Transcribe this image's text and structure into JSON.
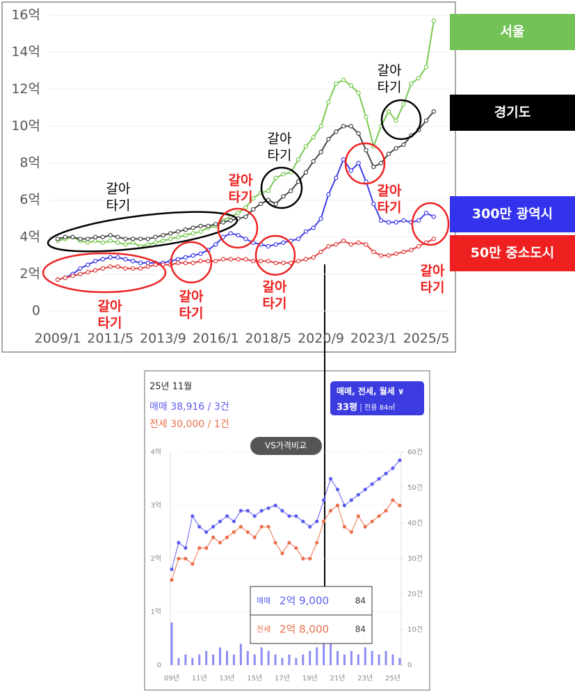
{
  "chart_data": [
    {
      "type": "line",
      "categories": [
        "2009/1",
        null,
        null,
        null,
        null,
        null,
        null,
        "2011/5",
        null,
        null,
        null,
        null,
        null,
        null,
        "2013/9",
        null,
        null,
        null,
        null,
        null,
        null,
        "2016/1",
        null,
        null,
        null,
        null,
        null,
        null,
        "2018/5",
        null,
        null,
        null,
        null,
        null,
        null,
        "2020/9",
        null,
        null,
        null,
        null,
        null,
        null,
        "2023/1",
        null,
        null,
        null,
        null,
        null,
        null,
        "2025/5",
        null
      ],
      "series": [
        {
          "name": "서울",
          "color": "#76c94f",
          "values": [
            3.8,
            3.9,
            4.0,
            3.8,
            3.7,
            3.8,
            3.7,
            3.8,
            3.7,
            3.6,
            3.7,
            3.5,
            3.6,
            3.7,
            3.8,
            3.9,
            4.0,
            4.1,
            4.2,
            4.3,
            4.5,
            4.6,
            4.9,
            5.1,
            5.3,
            5.6,
            6.1,
            6.4,
            6.5,
            7.2,
            7.4,
            7.5,
            8.2,
            8.9,
            9.4,
            10.0,
            11.3,
            12.3,
            12.5,
            12.2,
            11.8,
            10.5,
            8.9,
            10.0,
            10.8,
            10.3,
            11.2,
            12.3,
            12.6,
            13.2,
            15.7
          ]
        },
        {
          "name": "경기도",
          "color": "#444444",
          "values": [
            3.9,
            4.0,
            4.0,
            3.9,
            3.9,
            4.0,
            4.0,
            4.1,
            4.0,
            3.9,
            3.9,
            3.9,
            3.9,
            4.0,
            4.1,
            4.2,
            4.3,
            4.4,
            4.5,
            4.6,
            4.6,
            4.7,
            4.8,
            4.9,
            5.0,
            5.1,
            5.5,
            5.8,
            6.0,
            5.8,
            6.2,
            6.5,
            7.0,
            7.5,
            8.1,
            8.6,
            9.3,
            9.7,
            10.0,
            10.0,
            9.6,
            8.7,
            7.8,
            8.0,
            8.5,
            8.8,
            9.0,
            9.5,
            9.8,
            10.3,
            10.8
          ]
        },
        {
          "name": "300만 광역시",
          "color": "#3a3ae8",
          "values": [
            1.7,
            1.8,
            2.0,
            2.3,
            2.5,
            2.7,
            2.8,
            2.9,
            2.9,
            2.8,
            2.7,
            2.6,
            2.6,
            2.6,
            2.6,
            2.7,
            2.8,
            2.9,
            3.0,
            3.1,
            3.3,
            3.6,
            4.0,
            4.2,
            4.1,
            3.9,
            3.7,
            3.6,
            3.5,
            3.6,
            3.7,
            3.8,
            3.9,
            4.3,
            4.5,
            5.0,
            6.3,
            7.2,
            8.2,
            7.6,
            8.0,
            7.0,
            5.8,
            4.9,
            4.8,
            4.8,
            4.9,
            4.8,
            4.9,
            5.3,
            5.1
          ]
        },
        {
          "name": "50만 중소도시",
          "color": "#e03a3a",
          "values": [
            1.7,
            1.8,
            1.9,
            2.0,
            2.1,
            2.2,
            2.3,
            2.4,
            2.4,
            2.3,
            2.3,
            2.3,
            2.4,
            2.5,
            2.5,
            2.5,
            2.6,
            2.6,
            2.6,
            2.7,
            2.7,
            2.7,
            2.8,
            2.8,
            2.8,
            2.8,
            2.7,
            2.7,
            2.7,
            2.6,
            2.6,
            2.6,
            2.7,
            2.8,
            2.9,
            3.2,
            3.5,
            3.6,
            3.8,
            3.6,
            3.7,
            3.6,
            3.2,
            3.0,
            3.0,
            3.1,
            3.2,
            3.3,
            3.5,
            3.7,
            3.9
          ]
        }
      ],
      "legend_colors": [
        "#72c255",
        "#000000",
        "#3333ee",
        "#ee2020"
      ],
      "legend": "right",
      "ylim": [
        0,
        16
      ],
      "yticks": [
        0,
        {
          "value": 2,
          "label": "2억"
        },
        {
          "value": 4,
          "label": "4억"
        },
        {
          "value": 6,
          "label": "6억"
        },
        {
          "value": 8,
          "label": "8억"
        },
        {
          "value": 10,
          "label": "10억"
        },
        {
          "value": 12,
          "label": "12억"
        },
        {
          "value": 14,
          "label": "14억"
        },
        {
          "value": 16,
          "label": "16억"
        }
      ],
      "grid": true,
      "annotations": [
        {
          "lines": [
            "갈아",
            "타기"
          ],
          "color": "#000000"
        },
        {
          "lines": [
            "갈아",
            "타기"
          ],
          "color": "#000000"
        },
        {
          "lines": [
            "갈아",
            "타기"
          ],
          "color": "#000000"
        },
        {
          "lines": [
            "갈아",
            "타기"
          ],
          "color": "#ee2020"
        },
        {
          "lines": [
            "갈아",
            "타기"
          ],
          "color": "#ee2020"
        },
        {
          "lines": [
            "갈아",
            "타기"
          ],
          "color": "#ee2020"
        },
        {
          "lines": [
            "갈아",
            "타기"
          ],
          "color": "#ee2020"
        },
        {
          "lines": [
            "갈아",
            "타기"
          ],
          "color": "#ee2020"
        },
        {
          "lines": [
            "갈아",
            "타기"
          ],
          "color": "#ee2020"
        }
      ]
    },
    {
      "type": "line",
      "date_label": "25년 11월",
      "summary": [
        "매매 38,916 / 3건",
        "전세 30,000 / 1건"
      ],
      "filter": "매매, 전세, 월세 ∨",
      "size": "33평",
      "area": "전용 84㎡",
      "button": "VS가격비교",
      "categories": [
        "09년",
        null,
        null,
        null,
        "11년",
        null,
        null,
        null,
        "13년",
        null,
        null,
        null,
        "15년",
        null,
        null,
        null,
        "17년",
        null,
        null,
        null,
        "19년",
        null,
        null,
        null,
        "21년",
        null,
        null,
        null,
        "23년",
        null,
        null,
        null,
        "25년",
        null
      ],
      "series": [
        {
          "name": "매매",
          "color": "#5b5bf0",
          "values": [
            1.8,
            2.3,
            2.2,
            2.8,
            2.6,
            2.5,
            2.6,
            2.7,
            2.8,
            2.7,
            2.9,
            2.9,
            2.8,
            2.9,
            2.95,
            3.0,
            2.9,
            2.8,
            2.8,
            2.7,
            2.6,
            2.7,
            3.1,
            3.5,
            3.3,
            3.0,
            3.1,
            3.2,
            3.3,
            3.4,
            3.5,
            3.6,
            3.7,
            3.85
          ]
        },
        {
          "name": "전세",
          "color": "#e8704a",
          "values": [
            1.6,
            2.0,
            2.0,
            1.9,
            2.2,
            2.2,
            2.4,
            2.3,
            2.4,
            2.5,
            2.6,
            2.5,
            2.4,
            2.6,
            2.6,
            2.3,
            2.1,
            2.3,
            2.2,
            2.0,
            2.0,
            2.3,
            2.7,
            2.9,
            3.0,
            2.6,
            2.5,
            2.8,
            2.6,
            2.7,
            2.8,
            2.9,
            3.1,
            3.0
          ]
        }
      ],
      "bars": {
        "color": "#5b5bf0",
        "axis": "y2",
        "values": [
          12,
          2,
          3,
          2,
          3,
          4,
          3,
          5,
          4,
          3,
          6,
          4,
          3,
          5,
          4,
          3,
          2,
          3,
          2,
          3,
          4,
          5,
          7,
          6,
          4,
          3,
          4,
          3,
          5,
          4,
          3,
          4,
          3,
          2
        ]
      },
      "ylim": [
        0,
        4
      ],
      "yticks": [
        0,
        {
          "value": 1,
          "label": "1억"
        },
        {
          "value": 2,
          "label": "2억"
        },
        {
          "value": 3,
          "label": "3억"
        },
        {
          "value": 4,
          "label": "4억"
        }
      ],
      "y2lim": [
        0,
        60
      ],
      "y2ticks": [
        0,
        {
          "value": 10,
          "label": "10건"
        },
        {
          "value": 20,
          "label": "20건"
        },
        {
          "value": 30,
          "label": "30건"
        },
        {
          "value": 40,
          "label": "40건"
        },
        {
          "value": 50,
          "label": "50건"
        },
        {
          "value": 60,
          "label": "60건"
        }
      ],
      "grid": true,
      "tooltip": [
        {
          "price": "2억 9,000",
          "size": "84"
        },
        {
          "price": "2억 8,000",
          "size": "84"
        }
      ]
    }
  ]
}
